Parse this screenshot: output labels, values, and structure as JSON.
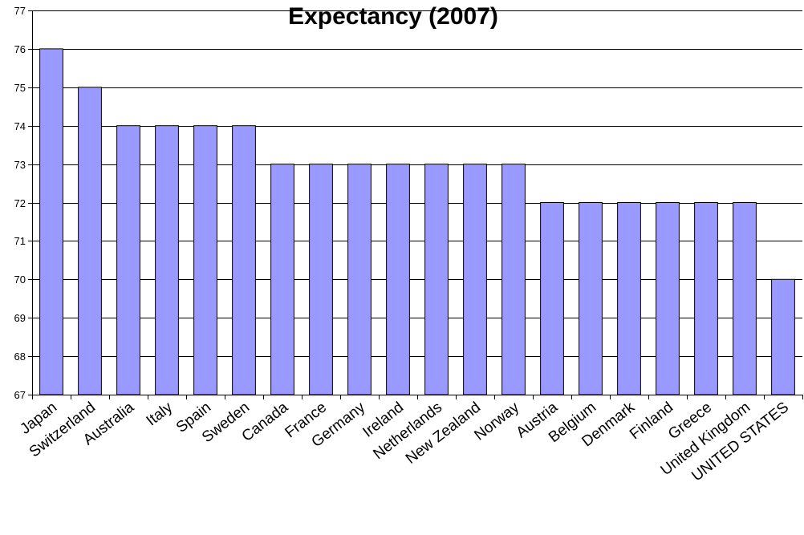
{
  "chart_data": {
    "type": "bar",
    "title": "Expectancy (2007)",
    "categories": [
      "Japan",
      "Switzerland",
      "Australia",
      "Italy",
      "Spain",
      "Sweden",
      "Canada",
      "France",
      "Germany",
      "Ireland",
      "Netherlands",
      "New Zealand",
      "Norway",
      "Austria",
      "Belgium",
      "Denmark",
      "Finland",
      "Greece",
      "United Kingdom",
      "UNITED STATES"
    ],
    "values": [
      76,
      75,
      74,
      74,
      74,
      74,
      73,
      73,
      73,
      73,
      73,
      73,
      73,
      72,
      72,
      72,
      72,
      72,
      72,
      70
    ],
    "ylim": [
      67,
      77
    ],
    "yticks": [
      "67",
      "68",
      "69",
      "70",
      "71",
      "72",
      "73",
      "74",
      "75",
      "76",
      "77"
    ],
    "grid": true,
    "legend": "none",
    "bar_color": "#9999ff",
    "xlabel": "",
    "ylabel": ""
  }
}
